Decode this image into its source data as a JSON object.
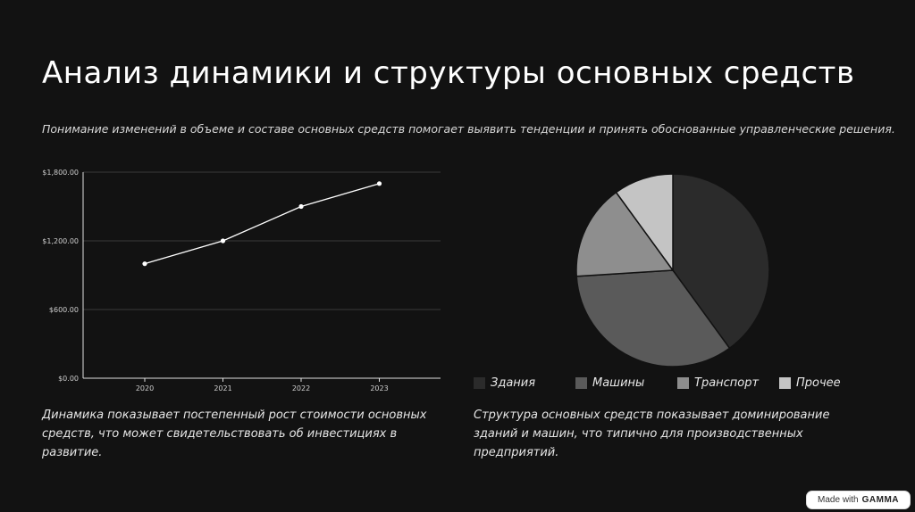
{
  "slide": {
    "title": "Анализ динамики и структуры основных средств",
    "subtitle": "Понимание изменений в объеме и составе основных средств помогает выявить тенденции и принять обоснованные управленческие решения.",
    "caption_left": "Динамика показывает постепенный рост стоимости основных средств, что может свидетельствовать об инвестициях в развитие.",
    "caption_right": "Структура основных средств показывает доминирование зданий и машин, что типично для производственных предприятий."
  },
  "badge": {
    "prefix": "Made with",
    "brand": "GAMMA"
  },
  "chart_data": [
    {
      "type": "line",
      "x": [
        "2020",
        "2021",
        "2022",
        "2023"
      ],
      "series": [
        {
          "values": [
            1000,
            1200,
            1500,
            1700
          ]
        }
      ],
      "y_ticks": [
        "$0.00",
        "$600.00",
        "$1,200.00",
        "$1,800.00"
      ],
      "ylim": [
        0,
        1800
      ],
      "grid": true,
      "colors": {
        "line": "#ffffff",
        "grid": "#3a3a3a",
        "axis": "#e0e0e0"
      }
    },
    {
      "type": "pie",
      "categories": [
        "Здания",
        "Машины",
        "Транспорт",
        "Прочее"
      ],
      "values": [
        40,
        34,
        16,
        10
      ],
      "colors": [
        "#2b2b2b",
        "#5a5a5a",
        "#8e8e8e",
        "#c4c4c4"
      ],
      "legend": "bottom"
    }
  ]
}
